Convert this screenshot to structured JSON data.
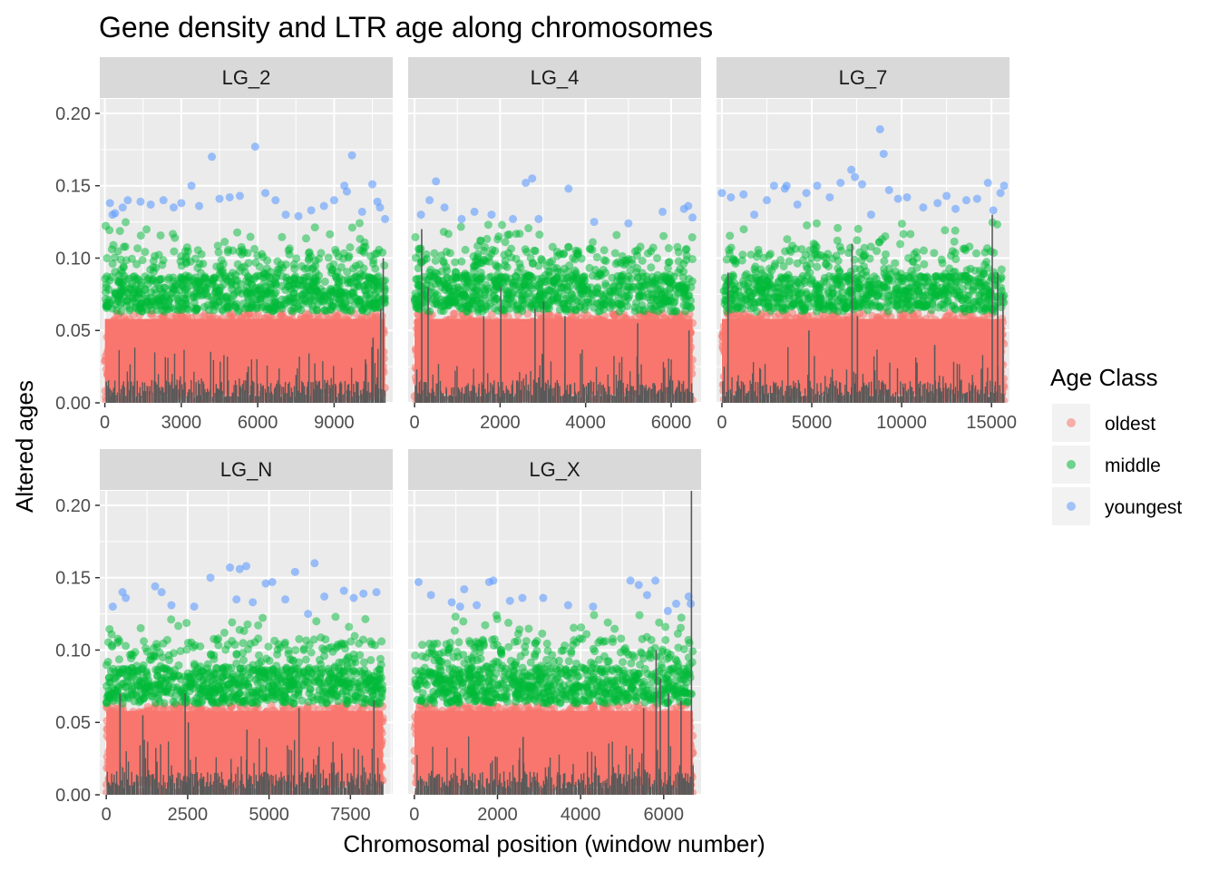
{
  "chart_data": {
    "type": "scatter",
    "title": "Gene density and LTR age along chromosomes",
    "xlabel": "Chromosomal position (window number)",
    "ylabel": "Altered ages",
    "ylim": [
      0,
      0.21
    ],
    "y_ticks": [
      "0.00",
      "0.05",
      "0.10",
      "0.15",
      "0.20"
    ],
    "y_tick_values": [
      0,
      0.05,
      0.1,
      0.15,
      0.2
    ],
    "grid": true,
    "legend": {
      "title": "Age Class",
      "placement": "right",
      "entries": [
        {
          "name": "oldest",
          "color": "#F8766D"
        },
        {
          "name": "middle",
          "color": "#00BA38"
        },
        {
          "name": "youngest",
          "color": "#619CFF"
        }
      ]
    },
    "bar_color": "#595959",
    "panels": [
      {
        "name": "LG_2",
        "xlim": [
          -200,
          11300
        ],
        "x_ticks": [
          "0",
          "3000",
          "6000",
          "9000"
        ],
        "x_tick_values": [
          0,
          3000,
          6000,
          9000
        ],
        "x_max_data": 11000,
        "youngest_points": [
          [
            200,
            0.138
          ],
          [
            300,
            0.13
          ],
          [
            400,
            0.131
          ],
          [
            700,
            0.135
          ],
          [
            900,
            0.14
          ],
          [
            1400,
            0.139
          ],
          [
            1800,
            0.137
          ],
          [
            2300,
            0.14
          ],
          [
            2700,
            0.135
          ],
          [
            3000,
            0.138
          ],
          [
            3400,
            0.15
          ],
          [
            3700,
            0.136
          ],
          [
            4200,
            0.17
          ],
          [
            4500,
            0.141
          ],
          [
            4900,
            0.142
          ],
          [
            5300,
            0.143
          ],
          [
            5900,
            0.177
          ],
          [
            6300,
            0.145
          ],
          [
            6700,
            0.14
          ],
          [
            7100,
            0.13
          ],
          [
            7600,
            0.129
          ],
          [
            8100,
            0.133
          ],
          [
            8600,
            0.136
          ],
          [
            9000,
            0.14
          ],
          [
            9400,
            0.15
          ],
          [
            9500,
            0.146
          ],
          [
            9700,
            0.171
          ],
          [
            10100,
            0.132
          ],
          [
            10500,
            0.151
          ],
          [
            10700,
            0.139
          ],
          [
            10800,
            0.135
          ],
          [
            11000,
            0.127
          ]
        ],
        "bar_peaks": [
          [
            5600,
            0.025
          ],
          [
            10200,
            0.03
          ],
          [
            10500,
            0.045
          ],
          [
            10800,
            0.065
          ],
          [
            10900,
            0.1
          ]
        ]
      },
      {
        "name": "LG_4",
        "xlim": [
          -150,
          6700
        ],
        "x_ticks": [
          "0",
          "2000",
          "4000",
          "6000"
        ],
        "x_tick_values": [
          0,
          2000,
          4000,
          6000
        ],
        "x_max_data": 6500,
        "youngest_points": [
          [
            150,
            0.13
          ],
          [
            350,
            0.14
          ],
          [
            500,
            0.153
          ],
          [
            700,
            0.135
          ],
          [
            1100,
            0.127
          ],
          [
            1400,
            0.132
          ],
          [
            1800,
            0.13
          ],
          [
            2300,
            0.127
          ],
          [
            2600,
            0.152
          ],
          [
            2750,
            0.155
          ],
          [
            2900,
            0.127
          ],
          [
            3600,
            0.148
          ],
          [
            4200,
            0.125
          ],
          [
            5000,
            0.124
          ],
          [
            5800,
            0.132
          ],
          [
            6300,
            0.134
          ],
          [
            6400,
            0.136
          ],
          [
            6500,
            0.128
          ]
        ],
        "bar_peaks": [
          [
            150,
            0.12
          ],
          [
            300,
            0.08
          ],
          [
            1600,
            0.06
          ],
          [
            2000,
            0.08
          ],
          [
            2800,
            0.065
          ],
          [
            3000,
            0.07
          ],
          [
            3500,
            0.06
          ],
          [
            5200,
            0.055
          ],
          [
            6400,
            0.05
          ]
        ]
      },
      {
        "name": "LG_7",
        "xlim": [
          -300,
          16000
        ],
        "x_ticks": [
          "0",
          "5000",
          "10000",
          "15000"
        ],
        "x_tick_values": [
          0,
          5000,
          10000,
          15000
        ],
        "x_max_data": 15700,
        "youngest_points": [
          [
            0,
            0.145
          ],
          [
            500,
            0.142
          ],
          [
            1200,
            0.144
          ],
          [
            1800,
            0.13
          ],
          [
            2500,
            0.14
          ],
          [
            2900,
            0.15
          ],
          [
            3500,
            0.148
          ],
          [
            3600,
            0.15
          ],
          [
            4200,
            0.137
          ],
          [
            4700,
            0.145
          ],
          [
            5300,
            0.15
          ],
          [
            6000,
            0.142
          ],
          [
            6600,
            0.152
          ],
          [
            7200,
            0.161
          ],
          [
            7400,
            0.156
          ],
          [
            7800,
            0.151
          ],
          [
            8300,
            0.13
          ],
          [
            8800,
            0.189
          ],
          [
            9000,
            0.172
          ],
          [
            9300,
            0.147
          ],
          [
            9800,
            0.141
          ],
          [
            10300,
            0.142
          ],
          [
            11200,
            0.135
          ],
          [
            12000,
            0.138
          ],
          [
            12500,
            0.143
          ],
          [
            13000,
            0.134
          ],
          [
            13600,
            0.14
          ],
          [
            14200,
            0.141
          ],
          [
            14800,
            0.152
          ],
          [
            15100,
            0.133
          ],
          [
            15500,
            0.145
          ],
          [
            15700,
            0.15
          ]
        ],
        "bar_peaks": [
          [
            300,
            0.09
          ],
          [
            4800,
            0.05
          ],
          [
            7200,
            0.11
          ],
          [
            7500,
            0.06
          ],
          [
            11800,
            0.04
          ],
          [
            15000,
            0.13
          ],
          [
            15300,
            0.09
          ],
          [
            15600,
            0.075
          ]
        ]
      },
      {
        "name": "LG_N",
        "xlim": [
          -200,
          8800
        ],
        "x_ticks": [
          "0",
          "2500",
          "5000",
          "7500"
        ],
        "x_tick_values": [
          0,
          2500,
          5000,
          7500
        ],
        "x_max_data": 8500,
        "youngest_points": [
          [
            200,
            0.13
          ],
          [
            500,
            0.14
          ],
          [
            600,
            0.136
          ],
          [
            1500,
            0.144
          ],
          [
            1700,
            0.14
          ],
          [
            2000,
            0.131
          ],
          [
            2700,
            0.13
          ],
          [
            3200,
            0.15
          ],
          [
            3800,
            0.157
          ],
          [
            4000,
            0.135
          ],
          [
            4100,
            0.156
          ],
          [
            4300,
            0.158
          ],
          [
            4500,
            0.133
          ],
          [
            4900,
            0.146
          ],
          [
            5100,
            0.147
          ],
          [
            5500,
            0.135
          ],
          [
            5800,
            0.154
          ],
          [
            6200,
            0.125
          ],
          [
            6400,
            0.16
          ],
          [
            6700,
            0.137
          ],
          [
            7300,
            0.141
          ],
          [
            7600,
            0.136
          ],
          [
            7900,
            0.139
          ],
          [
            8300,
            0.14
          ]
        ],
        "bar_peaks": [
          [
            400,
            0.07
          ],
          [
            1100,
            0.055
          ],
          [
            2400,
            0.07
          ],
          [
            2500,
            0.05
          ],
          [
            4300,
            0.045
          ],
          [
            5900,
            0.06
          ],
          [
            8200,
            0.065
          ]
        ]
      },
      {
        "name": "LG_X",
        "xlim": [
          -150,
          6900
        ],
        "x_ticks": [
          "0",
          "2000",
          "4000",
          "6000"
        ],
        "x_tick_values": [
          0,
          2000,
          4000,
          6000
        ],
        "x_max_data": 6700,
        "youngest_points": [
          [
            100,
            0.147
          ],
          [
            400,
            0.138
          ],
          [
            900,
            0.133
          ],
          [
            1100,
            0.13
          ],
          [
            1200,
            0.142
          ],
          [
            1500,
            0.131
          ],
          [
            1800,
            0.147
          ],
          [
            1900,
            0.148
          ],
          [
            2300,
            0.134
          ],
          [
            2600,
            0.136
          ],
          [
            3100,
            0.136
          ],
          [
            3700,
            0.131
          ],
          [
            4300,
            0.13
          ],
          [
            5200,
            0.148
          ],
          [
            5400,
            0.145
          ],
          [
            5600,
            0.138
          ],
          [
            5800,
            0.148
          ],
          [
            6100,
            0.127
          ],
          [
            6300,
            0.132
          ],
          [
            6600,
            0.137
          ],
          [
            6650,
            0.132
          ]
        ],
        "bar_peaks": [
          [
            2600,
            0.04
          ],
          [
            5500,
            0.06
          ],
          [
            5800,
            0.1
          ],
          [
            5900,
            0.08
          ],
          [
            6100,
            0.07
          ],
          [
            6400,
            0.065
          ],
          [
            6650,
            0.21
          ]
        ]
      }
    ]
  }
}
